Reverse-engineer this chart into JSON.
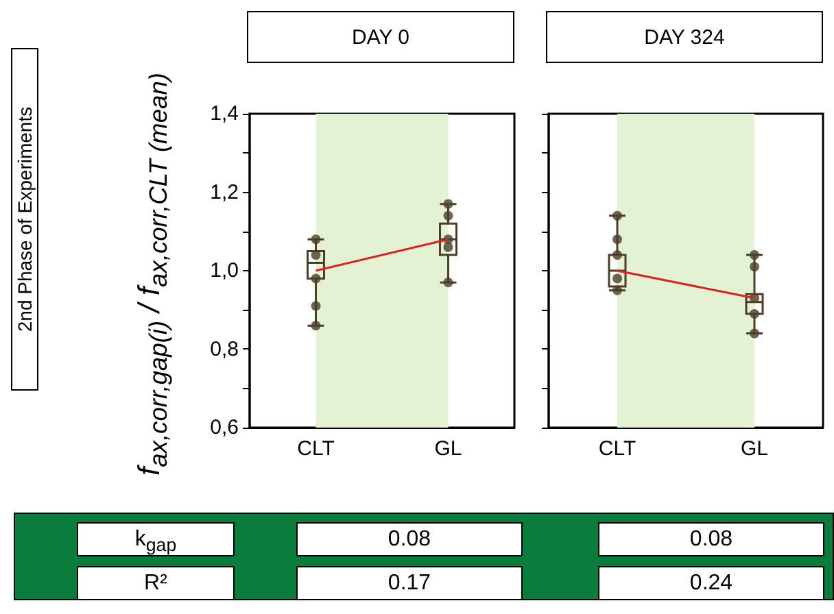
{
  "chart_data": [
    {
      "type": "box",
      "title": "DAY 0",
      "ylabel": "f$_{ax,corr,gap(i)}$ / f$_{ax,corr,CLT (mean)}$",
      "annotations": [
        "2nd Phase of Experiments"
      ],
      "categories": [
        "CLT",
        "GL"
      ],
      "ylim": [
        0.6,
        1.4
      ],
      "yticks": [
        {
          "value": 0.6,
          "label": "0,6"
        },
        {
          "value": 0.7,
          "label": null
        },
        {
          "value": 0.8,
          "label": "0,8"
        },
        {
          "value": 0.9,
          "label": null
        },
        {
          "value": 1.0,
          "label": "1,0"
        },
        {
          "value": 1.1,
          "label": null
        },
        {
          "value": 1.2,
          "label": "1,2"
        },
        {
          "value": 1.3,
          "label": null
        },
        {
          "value": 1.4,
          "label": "1,4"
        }
      ],
      "bands": [
        {
          "axis": "x",
          "from": "CLT",
          "to": "GL",
          "color": "#e4f2d4"
        }
      ],
      "series": [
        {
          "type": "box",
          "color": "#4a3f28",
          "boxes": [
            {
              "low": 0.86,
              "q1": 0.98,
              "median": 1.02,
              "q3": 1.05,
              "high": 1.08
            },
            {
              "low": 0.97,
              "q1": 1.04,
              "median": 1.08,
              "q3": 1.12,
              "high": 1.17
            }
          ]
        },
        {
          "type": "scatter",
          "color": "#4a3f28",
          "marker": "circle",
          "x": [
            "CLT",
            "CLT",
            "CLT",
            "CLT",
            "CLT",
            "GL",
            "GL",
            "GL",
            "GL",
            "GL"
          ],
          "values": [
            1.08,
            1.04,
            0.98,
            0.91,
            0.86,
            1.17,
            1.14,
            1.08,
            1.06,
            0.97
          ]
        },
        {
          "type": "line",
          "color": "#e02020",
          "values": [
            1.0,
            1.08
          ]
        }
      ]
    },
    {
      "type": "box",
      "title": "DAY 324",
      "categories": [
        "CLT",
        "GL"
      ],
      "tick_labels": "x",
      "ylim": [
        0.6,
        1.4
      ],
      "yticks": [
        {
          "value": 0.6,
          "label": null
        },
        {
          "value": 0.7,
          "label": null
        },
        {
          "value": 0.8,
          "label": null
        },
        {
          "value": 0.9,
          "label": null
        },
        {
          "value": 1.0,
          "label": null
        },
        {
          "value": 1.1,
          "label": null
        },
        {
          "value": 1.2,
          "label": null
        },
        {
          "value": 1.3,
          "label": null
        },
        {
          "value": 1.4,
          "label": null
        }
      ],
      "bands": [
        {
          "axis": "x",
          "from": "CLT",
          "to": "GL",
          "color": "#e4f2d4"
        }
      ],
      "series": [
        {
          "type": "box",
          "color": "#4a3f28",
          "boxes": [
            {
              "low": 0.95,
              "q1": 0.96,
              "median": 1.0,
              "q3": 1.04,
              "high": 1.14
            },
            {
              "low": 0.84,
              "q1": 0.89,
              "median": 0.92,
              "q3": 0.94,
              "high": 1.04
            }
          ]
        },
        {
          "type": "scatter",
          "color": "#4a3f28",
          "marker": "circle",
          "x": [
            "CLT",
            "CLT",
            "CLT",
            "CLT",
            "CLT",
            "GL",
            "GL",
            "GL",
            "GL",
            "GL"
          ],
          "values": [
            1.14,
            1.08,
            1.04,
            0.98,
            0.95,
            1.04,
            1.01,
            0.93,
            0.89,
            0.84
          ]
        },
        {
          "type": "line",
          "color": "#e02020",
          "values": [
            1.0,
            0.93
          ]
        }
      ]
    },
    {
      "type": "other",
      "annotations": [
        "k$_{gap}$",
        "0.08",
        "0.08",
        "R²",
        "0.17",
        "0.24"
      ]
    }
  ]
}
